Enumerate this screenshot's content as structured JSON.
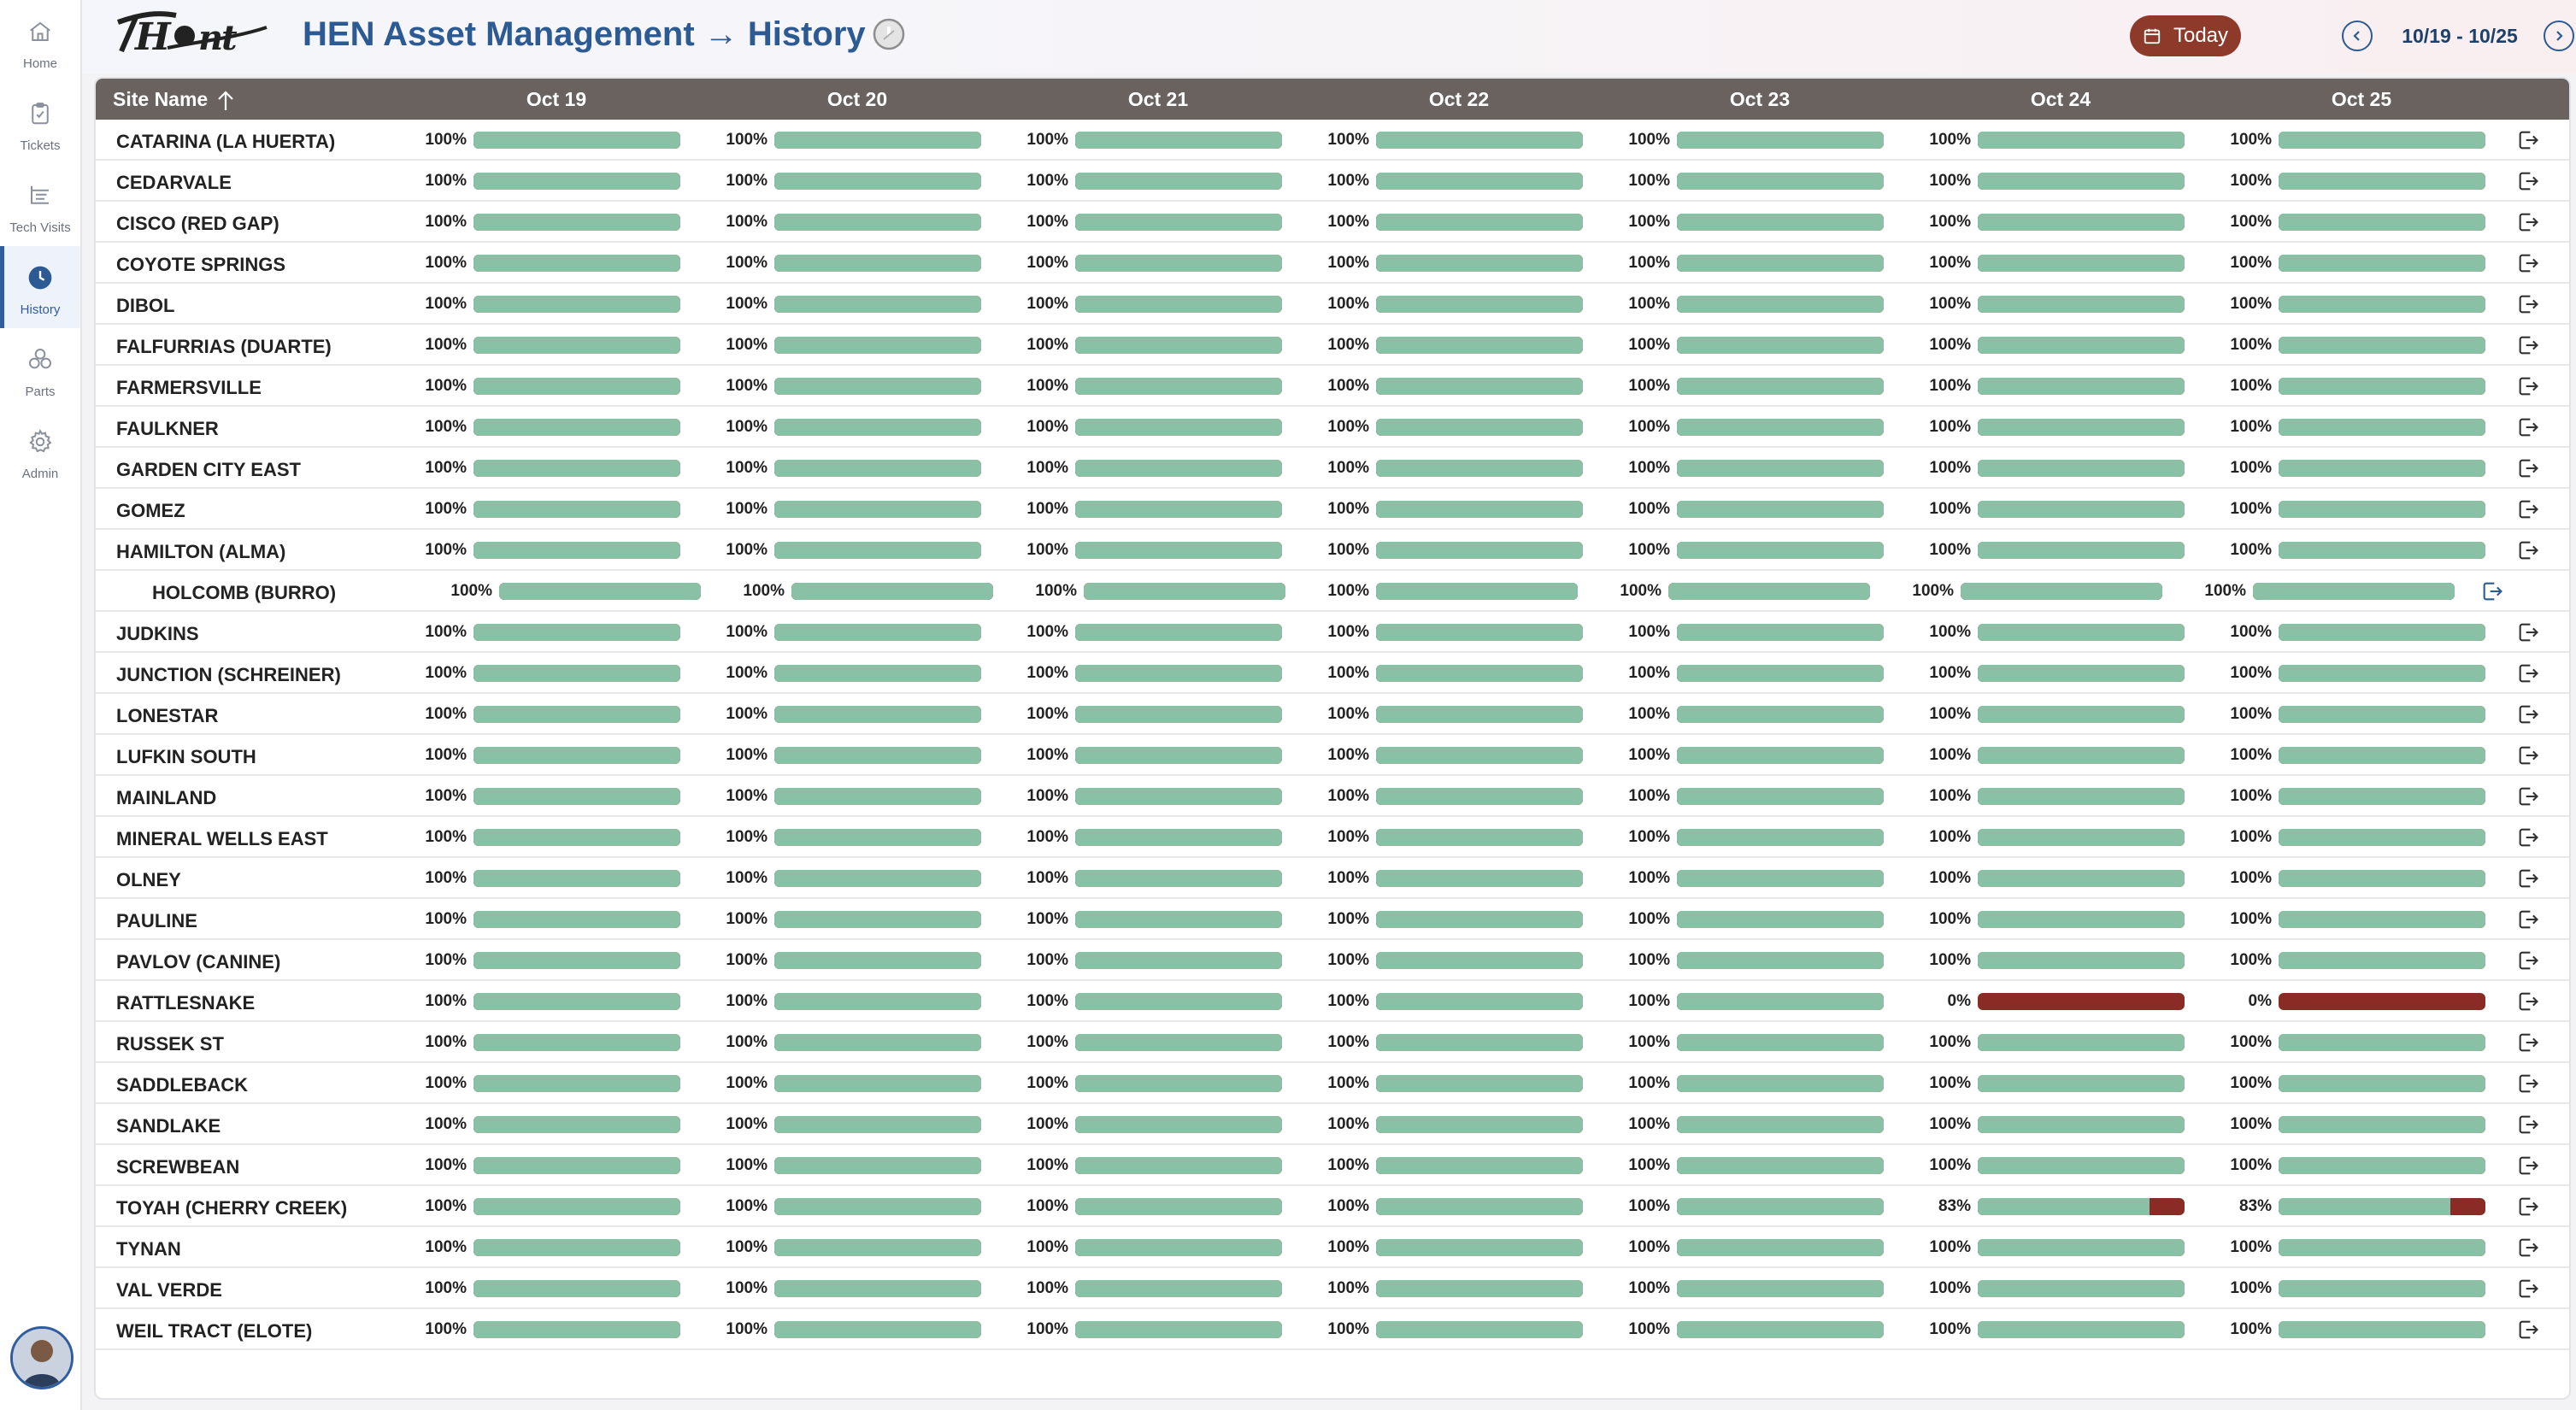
{
  "nav": [
    {
      "label": "Home",
      "icon": "home-icon",
      "active": false
    },
    {
      "label": "Tickets",
      "icon": "clipboard-icon",
      "active": false
    },
    {
      "label": "Tech Visits",
      "icon": "list-tree-icon",
      "active": false
    },
    {
      "label": "History",
      "icon": "clock-icon",
      "active": true
    },
    {
      "label": "Parts",
      "icon": "cubes-icon",
      "active": false
    },
    {
      "label": "Admin",
      "icon": "gear-icon",
      "active": false
    }
  ],
  "header": {
    "logo_text": "HEN",
    "title": "HEN Asset Management → History",
    "today_label": "Today",
    "range_label": "10/19 - 10/25"
  },
  "table": {
    "site_header": "Site Name",
    "days": [
      "Oct 19",
      "Oct 20",
      "Oct 21",
      "Oct 22",
      "Oct 23",
      "Oct 24",
      "Oct 25"
    ],
    "rows": [
      {
        "name": "CATARINA (LA HUERTA)",
        "values": [
          100,
          100,
          100,
          100,
          100,
          100,
          100
        ]
      },
      {
        "name": "CEDARVALE",
        "values": [
          100,
          100,
          100,
          100,
          100,
          100,
          100
        ]
      },
      {
        "name": "CISCO (RED GAP)",
        "values": [
          100,
          100,
          100,
          100,
          100,
          100,
          100
        ]
      },
      {
        "name": "COYOTE SPRINGS",
        "values": [
          100,
          100,
          100,
          100,
          100,
          100,
          100
        ]
      },
      {
        "name": "DIBOL",
        "values": [
          100,
          100,
          100,
          100,
          100,
          100,
          100
        ]
      },
      {
        "name": "FALFURRIAS (DUARTE)",
        "values": [
          100,
          100,
          100,
          100,
          100,
          100,
          100
        ]
      },
      {
        "name": "FARMERSVILLE",
        "values": [
          100,
          100,
          100,
          100,
          100,
          100,
          100
        ]
      },
      {
        "name": "FAULKNER",
        "values": [
          100,
          100,
          100,
          100,
          100,
          100,
          100
        ]
      },
      {
        "name": "GARDEN CITY EAST",
        "values": [
          100,
          100,
          100,
          100,
          100,
          100,
          100
        ]
      },
      {
        "name": "GOMEZ",
        "values": [
          100,
          100,
          100,
          100,
          100,
          100,
          100
        ]
      },
      {
        "name": "HAMILTON (ALMA)",
        "values": [
          100,
          100,
          100,
          100,
          100,
          100,
          100
        ]
      },
      {
        "name": "HOLCOMB (BURRO)",
        "values": [
          100,
          100,
          100,
          100,
          100,
          100,
          100
        ],
        "highlight": true
      },
      {
        "name": "JUDKINS",
        "values": [
          100,
          100,
          100,
          100,
          100,
          100,
          100
        ]
      },
      {
        "name": "JUNCTION (SCHREINER)",
        "values": [
          100,
          100,
          100,
          100,
          100,
          100,
          100
        ]
      },
      {
        "name": "LONESTAR",
        "values": [
          100,
          100,
          100,
          100,
          100,
          100,
          100
        ]
      },
      {
        "name": "LUFKIN SOUTH",
        "values": [
          100,
          100,
          100,
          100,
          100,
          100,
          100
        ]
      },
      {
        "name": "MAINLAND",
        "values": [
          100,
          100,
          100,
          100,
          100,
          100,
          100
        ]
      },
      {
        "name": "MINERAL WELLS EAST",
        "values": [
          100,
          100,
          100,
          100,
          100,
          100,
          100
        ]
      },
      {
        "name": "OLNEY",
        "values": [
          100,
          100,
          100,
          100,
          100,
          100,
          100
        ]
      },
      {
        "name": "PAULINE",
        "values": [
          100,
          100,
          100,
          100,
          100,
          100,
          100
        ]
      },
      {
        "name": "PAVLOV (CANINE)",
        "values": [
          100,
          100,
          100,
          100,
          100,
          100,
          100
        ]
      },
      {
        "name": "RATTLESNAKE",
        "values": [
          100,
          100,
          100,
          100,
          100,
          0,
          0
        ]
      },
      {
        "name": "RUSSEK ST",
        "values": [
          100,
          100,
          100,
          100,
          100,
          100,
          100
        ]
      },
      {
        "name": "SADDLEBACK",
        "values": [
          100,
          100,
          100,
          100,
          100,
          100,
          100
        ]
      },
      {
        "name": "SANDLAKE",
        "values": [
          100,
          100,
          100,
          100,
          100,
          100,
          100
        ]
      },
      {
        "name": "SCREWBEAN",
        "values": [
          100,
          100,
          100,
          100,
          100,
          100,
          100
        ]
      },
      {
        "name": "TOYAH (CHERRY CREEK)",
        "values": [
          100,
          100,
          100,
          100,
          100,
          83,
          83
        ]
      },
      {
        "name": "TYNAN",
        "values": [
          100,
          100,
          100,
          100,
          100,
          100,
          100
        ]
      },
      {
        "name": "VAL VERDE",
        "values": [
          100,
          100,
          100,
          100,
          100,
          100,
          100
        ]
      },
      {
        "name": "WEIL TRACT (ELOTE)",
        "values": [
          100,
          100,
          100,
          100,
          100,
          100,
          100
        ]
      }
    ]
  },
  "colors": {
    "accent": "#2c5a93",
    "good": "#8ac0a5",
    "bad": "#8a2b25",
    "header_bg": "#69625e",
    "today_bg": "#8e3a2b"
  }
}
